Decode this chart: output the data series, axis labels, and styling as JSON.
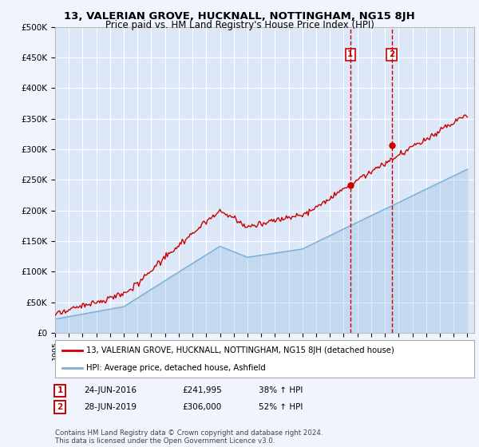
{
  "title": "13, VALERIAN GROVE, HUCKNALL, NOTTINGHAM, NG15 8JH",
  "subtitle": "Price paid vs. HM Land Registry's House Price Index (HPI)",
  "ylim": [
    0,
    500000
  ],
  "yticks": [
    0,
    50000,
    100000,
    150000,
    200000,
    250000,
    300000,
    350000,
    400000,
    450000,
    500000
  ],
  "ytick_labels": [
    "£0",
    "£50K",
    "£100K",
    "£150K",
    "£200K",
    "£250K",
    "£300K",
    "£350K",
    "£400K",
    "£450K",
    "£500K"
  ],
  "fig_bg_color": "#f0f4ff",
  "plot_bg_color": "#dce8f8",
  "grid_color": "#ffffff",
  "red_line_color": "#cc0000",
  "blue_line_color": "#7aaed6",
  "sale1_date": 2016.48,
  "sale1_price": 241995,
  "sale2_date": 2019.49,
  "sale2_price": 306000,
  "legend_entry1": "13, VALERIAN GROVE, HUCKNALL, NOTTINGHAM, NG15 8JH (detached house)",
  "legend_entry2": "HPI: Average price, detached house, Ashfield",
  "table_row1": [
    "1",
    "24-JUN-2016",
    "£241,995",
    "38% ↑ HPI"
  ],
  "table_row2": [
    "2",
    "28-JUN-2019",
    "£306,000",
    "52% ↑ HPI"
  ],
  "footnote": "Contains HM Land Registry data © Crown copyright and database right 2024.\nThis data is licensed under the Open Government Licence v3.0.",
  "title_fontsize": 9.5,
  "subtitle_fontsize": 8.5
}
